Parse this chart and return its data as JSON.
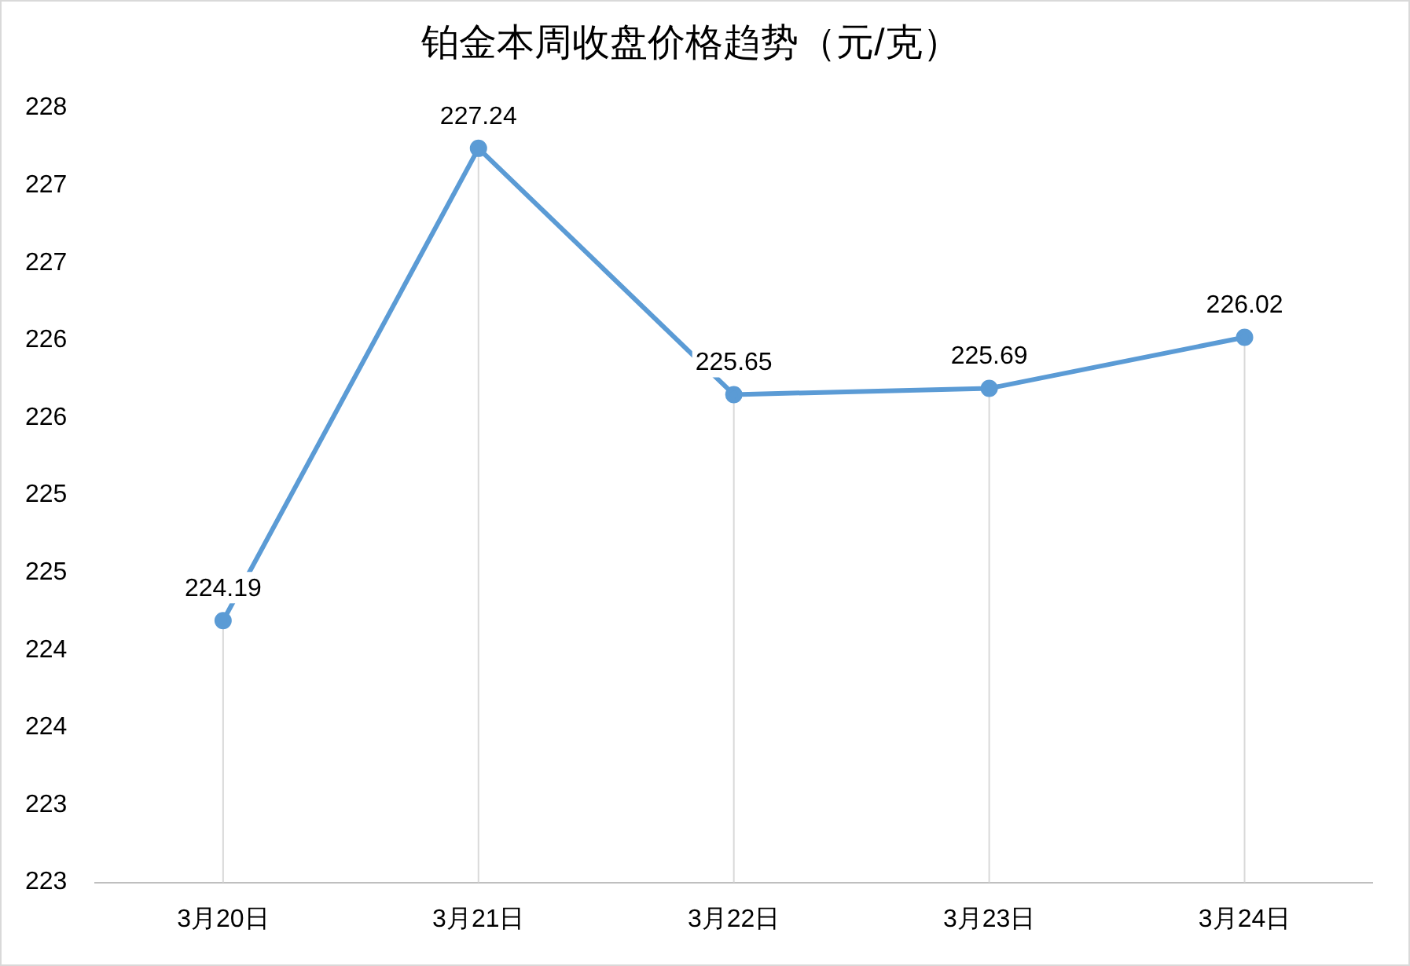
{
  "chart_data": {
    "type": "line",
    "title": "铂金本周收盘价格趋势（元/克）",
    "categories": [
      "3月20日",
      "3月21日",
      "3月22日",
      "3月23日",
      "3月24日"
    ],
    "series": [
      {
        "color": "#5b9bd5",
        "values": [
          224.19,
          227.24,
          225.65,
          225.69,
          226.02
        ]
      }
    ],
    "ylim": [
      222.5,
      227.5
    ],
    "yticks": [
      {
        "value": 222.5,
        "label": "223"
      },
      {
        "value": 223,
        "label": "223"
      },
      {
        "value": 223.5,
        "label": "224"
      },
      {
        "value": 224,
        "label": "224"
      },
      {
        "value": 224.5,
        "label": "225"
      },
      {
        "value": 225,
        "label": "225"
      },
      {
        "value": 225.5,
        "label": "226"
      },
      {
        "value": 226,
        "label": "226"
      },
      {
        "value": 226.5,
        "label": "227"
      },
      {
        "value": 227,
        "label": "227"
      },
      {
        "value": 227.5,
        "label": "228"
      }
    ],
    "grid": "x",
    "legend": false,
    "marker": "circle",
    "line_style": "solid",
    "data_labels": true
  }
}
